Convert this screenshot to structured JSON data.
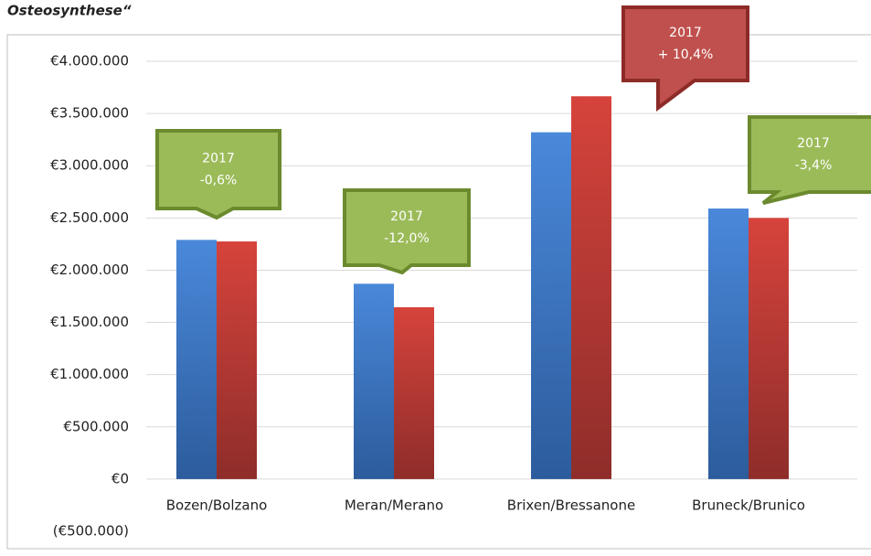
{
  "chart_data": {
    "type": "bar",
    "title": "Osteosynthese“",
    "categories": [
      "Bozen/Bolzano",
      "Meran/Merano",
      "Brixen/Bressanone",
      "Bruneck/Brunico"
    ],
    "series": [
      {
        "color": "#3f7bcc",
        "values": [
          2290000,
          1870000,
          3320000,
          2590000
        ]
      },
      {
        "color": "#c8403b",
        "values": [
          2275000,
          1645000,
          3665000,
          2500000
        ]
      }
    ],
    "ylim": [
      -500000,
      4000000
    ],
    "yticks": [
      {
        "value": -500000,
        "label": "(€500.000)"
      },
      {
        "value": 0,
        "label": "€0"
      },
      {
        "value": 500000,
        "label": "€500.000"
      },
      {
        "value": 1000000,
        "label": "€1.000.000"
      },
      {
        "value": 1500000,
        "label": "€1.500.000"
      },
      {
        "value": 2000000,
        "label": "€2.000.000"
      },
      {
        "value": 2500000,
        "label": "€2.500.000"
      },
      {
        "value": 3000000,
        "label": "€3.000.000"
      },
      {
        "value": 3500000,
        "label": "€3.500.000"
      },
      {
        "value": 4000000,
        "label": "€4.000.000"
      }
    ],
    "grid": true,
    "annotations": [
      {
        "lines": [
          "2017",
          "-0,6%"
        ],
        "color": "#9bbb59",
        "border": "#6b8a2e"
      },
      {
        "lines": [
          "2017",
          "-12,0%"
        ],
        "color": "#9bbb59",
        "border": "#6b8a2e"
      },
      {
        "lines": [
          "2017",
          "+ 10,4%"
        ],
        "color": "#c0504d",
        "border": "#8c2b28"
      },
      {
        "lines": [
          "2017",
          "-3,4%"
        ],
        "color": "#9bbb59",
        "border": "#6b8a2e"
      }
    ]
  }
}
